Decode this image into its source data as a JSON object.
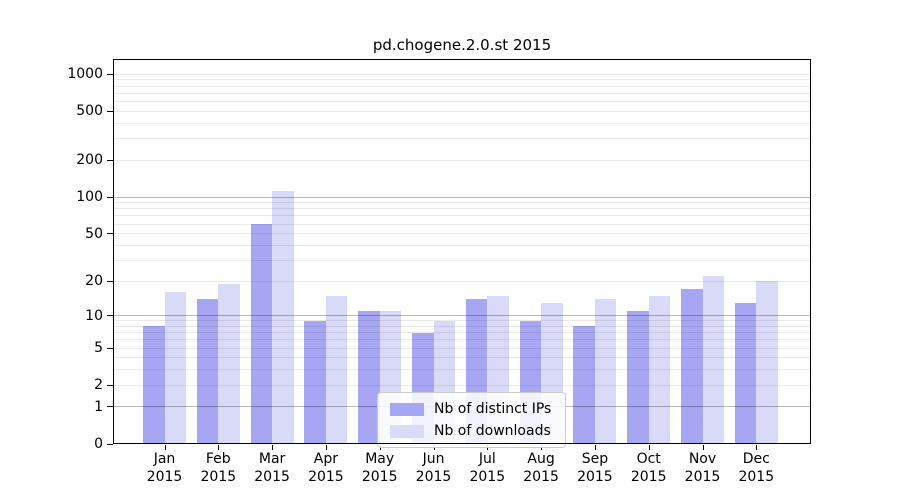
{
  "chart_data": {
    "type": "bar",
    "title": "pd.chogene.2.0.st 2015",
    "categories": [
      "Jan",
      "Feb",
      "Mar",
      "Apr",
      "May",
      "Jun",
      "Jul",
      "Aug",
      "Sep",
      "Oct",
      "Nov",
      "Dec"
    ],
    "category_year": "2015",
    "series": [
      {
        "name": "Nb of distinct IPs",
        "color": "#a6a6f3",
        "values": [
          8,
          14,
          60,
          9,
          11,
          7,
          14,
          9,
          8,
          11,
          17,
          13
        ]
      },
      {
        "name": "Nb of downloads",
        "color": "#d9d9f8",
        "values": [
          16,
          19,
          112,
          15,
          11,
          9,
          15,
          13,
          14,
          15,
          22,
          20
        ]
      }
    ],
    "yscale": "log10(1+x)",
    "ylim": [
      0,
      1330
    ],
    "y_tick_labels": [
      "1000",
      "500",
      "200",
      "100",
      "50",
      "20",
      "10",
      "5",
      "2",
      "1",
      "0"
    ],
    "grid": {
      "major": [
        1,
        10,
        100
      ],
      "minor": [
        2,
        3,
        4,
        5,
        6,
        7,
        8,
        9,
        20,
        30,
        40,
        50,
        60,
        70,
        80,
        90,
        200,
        300,
        400,
        500,
        600,
        700,
        800,
        900,
        1000
      ],
      "on": true
    },
    "legend_position": "lower center"
  }
}
